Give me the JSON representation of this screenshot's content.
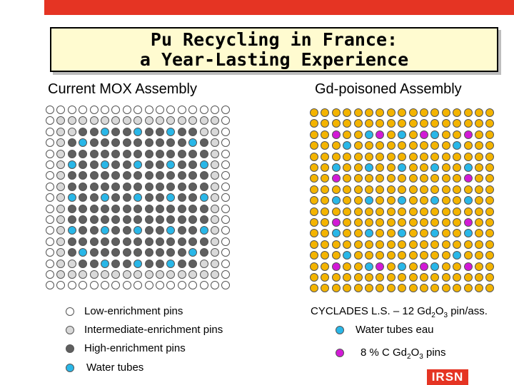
{
  "title": {
    "line1": "Pu Recycling in France:",
    "line2": "a Year-Lasting Experience"
  },
  "left": {
    "heading": "Current MOX Assembly",
    "legend": [
      {
        "label": "Low-enrichment pins",
        "color": "#ffffff"
      },
      {
        "label": "Intermediate-enrichment pins",
        "color": "#d9d9d9"
      },
      {
        "label": "High-enrichment pins",
        "color": "#5f5f5f"
      },
      {
        "label": "Water tubes",
        "color": "#29b7e8"
      }
    ]
  },
  "right": {
    "heading": "Gd-poisoned Assembly",
    "caption_prefix": "CYCLADES L.S. – 12 Gd",
    "caption_sub1": "2",
    "caption_mid": "O",
    "caption_sub2": "3",
    "caption_suffix": " pin/ass.",
    "legend_water": "Water tubes eau",
    "legend_gd_prefix": "8 % C Gd",
    "legend_gd_sub1": "2",
    "legend_gd_mid": "O",
    "legend_gd_sub2": "3",
    "legend_gd_suffix": "  pins"
  },
  "colors": {
    "accent_red": "#e53423",
    "low": "#ffffff",
    "intermediate": "#d9d9d9",
    "high": "#5f5f5f",
    "water": "#29b7e8",
    "fuel_yellow": "#f4b400",
    "gd_magenta": "#d21ad6"
  },
  "logo": "IRSN"
}
